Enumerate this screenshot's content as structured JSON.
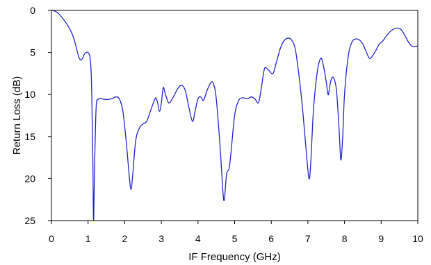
{
  "chart_data": {
    "type": "line",
    "title": "",
    "xlabel": "IF Frequency (GHz)",
    "ylabel": "Return Loss (dB)",
    "xlim": [
      0,
      10
    ],
    "ylim": [
      0,
      25
    ],
    "y_inverted": true,
    "grid": false,
    "x_ticks": [
      0,
      1,
      2,
      3,
      4,
      5,
      6,
      7,
      8,
      9,
      10
    ],
    "y_ticks": [
      0,
      5,
      10,
      15,
      20,
      25
    ],
    "x_tick_labels": [
      "0",
      "1",
      "2",
      "3",
      "4",
      "5",
      "6",
      "7",
      "8",
      "9",
      "10"
    ],
    "y_tick_labels": [
      "0",
      "5",
      "10",
      "15",
      "20",
      "25"
    ],
    "series": [
      {
        "color": "#2222cc",
        "points": [
          [
            0.0,
            0.0
          ],
          [
            0.1,
            0.1
          ],
          [
            0.2,
            0.4
          ],
          [
            0.3,
            0.9
          ],
          [
            0.4,
            1.5
          ],
          [
            0.5,
            2.2
          ],
          [
            0.6,
            3.2
          ],
          [
            0.7,
            4.8
          ],
          [
            0.75,
            5.6
          ],
          [
            0.8,
            5.9
          ],
          [
            0.85,
            5.7
          ],
          [
            0.9,
            5.2
          ],
          [
            0.95,
            5.0
          ],
          [
            1.0,
            5.0
          ],
          [
            1.05,
            5.5
          ],
          [
            1.08,
            7.0
          ],
          [
            1.1,
            10.0
          ],
          [
            1.13,
            18.0
          ],
          [
            1.15,
            25.0
          ],
          [
            1.18,
            18.0
          ],
          [
            1.22,
            11.5
          ],
          [
            1.27,
            10.6
          ],
          [
            1.35,
            10.5
          ],
          [
            1.5,
            10.6
          ],
          [
            1.65,
            10.5
          ],
          [
            1.75,
            10.3
          ],
          [
            1.85,
            10.5
          ],
          [
            1.95,
            12.0
          ],
          [
            2.05,
            16.0
          ],
          [
            2.12,
            19.5
          ],
          [
            2.17,
            21.3
          ],
          [
            2.22,
            19.5
          ],
          [
            2.3,
            15.5
          ],
          [
            2.4,
            14.0
          ],
          [
            2.5,
            13.5
          ],
          [
            2.6,
            13.2
          ],
          [
            2.7,
            12.0
          ],
          [
            2.8,
            10.8
          ],
          [
            2.85,
            10.4
          ],
          [
            2.9,
            11.0
          ],
          [
            2.95,
            12.0
          ],
          [
            3.0,
            11.0
          ],
          [
            3.05,
            9.2
          ],
          [
            3.1,
            9.8
          ],
          [
            3.2,
            11.0
          ],
          [
            3.3,
            10.5
          ],
          [
            3.45,
            9.3
          ],
          [
            3.55,
            8.9
          ],
          [
            3.65,
            9.5
          ],
          [
            3.75,
            11.5
          ],
          [
            3.85,
            13.2
          ],
          [
            3.92,
            12.0
          ],
          [
            4.0,
            10.5
          ],
          [
            4.08,
            10.3
          ],
          [
            4.15,
            10.7
          ],
          [
            4.25,
            9.5
          ],
          [
            4.35,
            8.6
          ],
          [
            4.42,
            8.7
          ],
          [
            4.5,
            10.5
          ],
          [
            4.6,
            16.0
          ],
          [
            4.68,
            21.5
          ],
          [
            4.72,
            22.5
          ],
          [
            4.78,
            19.5
          ],
          [
            4.85,
            18.8
          ],
          [
            4.9,
            17.0
          ],
          [
            5.0,
            12.5
          ],
          [
            5.1,
            10.8
          ],
          [
            5.2,
            10.4
          ],
          [
            5.35,
            10.5
          ],
          [
            5.45,
            10.3
          ],
          [
            5.55,
            10.5
          ],
          [
            5.65,
            11.0
          ],
          [
            5.72,
            9.5
          ],
          [
            5.8,
            7.2
          ],
          [
            5.85,
            6.8
          ],
          [
            5.95,
            7.2
          ],
          [
            6.05,
            7.5
          ],
          [
            6.15,
            6.0
          ],
          [
            6.25,
            4.5
          ],
          [
            6.35,
            3.6
          ],
          [
            6.45,
            3.3
          ],
          [
            6.55,
            3.5
          ],
          [
            6.65,
            4.5
          ],
          [
            6.75,
            7.5
          ],
          [
            6.85,
            11.5
          ],
          [
            6.95,
            16.5
          ],
          [
            7.03,
            20.0
          ],
          [
            7.08,
            18.0
          ],
          [
            7.15,
            12.0
          ],
          [
            7.25,
            7.5
          ],
          [
            7.35,
            5.7
          ],
          [
            7.42,
            6.5
          ],
          [
            7.5,
            8.5
          ],
          [
            7.55,
            10.0
          ],
          [
            7.58,
            9.5
          ],
          [
            7.63,
            8.3
          ],
          [
            7.7,
            8.0
          ],
          [
            7.78,
            9.5
          ],
          [
            7.85,
            14.0
          ],
          [
            7.9,
            17.8
          ],
          [
            7.95,
            15.0
          ],
          [
            8.0,
            10.0
          ],
          [
            8.1,
            5.5
          ],
          [
            8.2,
            3.8
          ],
          [
            8.3,
            3.4
          ],
          [
            8.4,
            3.5
          ],
          [
            8.5,
            4.0
          ],
          [
            8.6,
            5.0
          ],
          [
            8.68,
            5.7
          ],
          [
            8.75,
            5.5
          ],
          [
            8.85,
            4.8
          ],
          [
            8.95,
            4.0
          ],
          [
            9.05,
            3.6
          ],
          [
            9.15,
            3.0
          ],
          [
            9.25,
            2.5
          ],
          [
            9.35,
            2.2
          ],
          [
            9.45,
            2.1
          ],
          [
            9.55,
            2.3
          ],
          [
            9.65,
            3.0
          ],
          [
            9.75,
            3.8
          ],
          [
            9.85,
            4.3
          ],
          [
            9.95,
            4.3
          ],
          [
            10.0,
            4.2
          ]
        ]
      }
    ]
  }
}
